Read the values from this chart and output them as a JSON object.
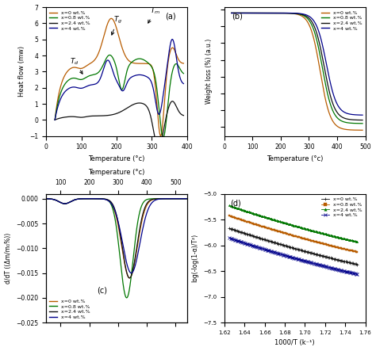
{
  "fig_size": [
    4.74,
    4.43
  ],
  "dpi": 100,
  "colors": {
    "x0": "#b85c00",
    "x08": "#007700",
    "x24": "#111111",
    "x4": "#00008b"
  },
  "panel_a": {
    "label": "(a)",
    "xlabel": "Temperature (°c)",
    "ylabel": "Heat flow (mw)",
    "xlim": [
      0,
      400
    ],
    "ylim": [
      -1,
      7
    ],
    "xticks": [
      0,
      100,
      200,
      300,
      400
    ]
  },
  "panel_b": {
    "label": "(b)",
    "xlabel": "Temperature (°c)",
    "ylabel": "Weight loss (%) (a.u.)",
    "xlim": [
      0,
      500
    ],
    "xticks": [
      0,
      100,
      200,
      300,
      400,
      500
    ]
  },
  "panel_c": {
    "label": "(c)",
    "xlabel": "Temperature (°c)",
    "ylabel": "d/dT ((Δm/m₀%))",
    "xlim": [
      50,
      540
    ],
    "ylim": [
      -0.025,
      0.001
    ],
    "yticks": [
      -0.025,
      -0.02,
      -0.015,
      -0.01,
      -0.005,
      0
    ],
    "xticks": [
      100,
      200,
      300,
      400,
      500
    ]
  },
  "panel_d": {
    "label": "(d)",
    "xlabel": "1000/T (k⁻¹)",
    "ylabel": "log(-log(1-α)/T²)",
    "xlim": [
      1.62,
      1.76
    ],
    "ylim": [
      -7.5,
      -5
    ],
    "yticks": [
      -7.5,
      -7.0,
      -6.5,
      -6.0,
      -5.5,
      -5.0
    ],
    "xticks": [
      1.62,
      1.64,
      1.66,
      1.68,
      1.7,
      1.72,
      1.74,
      1.76
    ]
  },
  "legend_labels": [
    "x=0 wt.%",
    "x=0.8 wt.%",
    "x=2.4 wt.%",
    "x=4 wt.%"
  ]
}
